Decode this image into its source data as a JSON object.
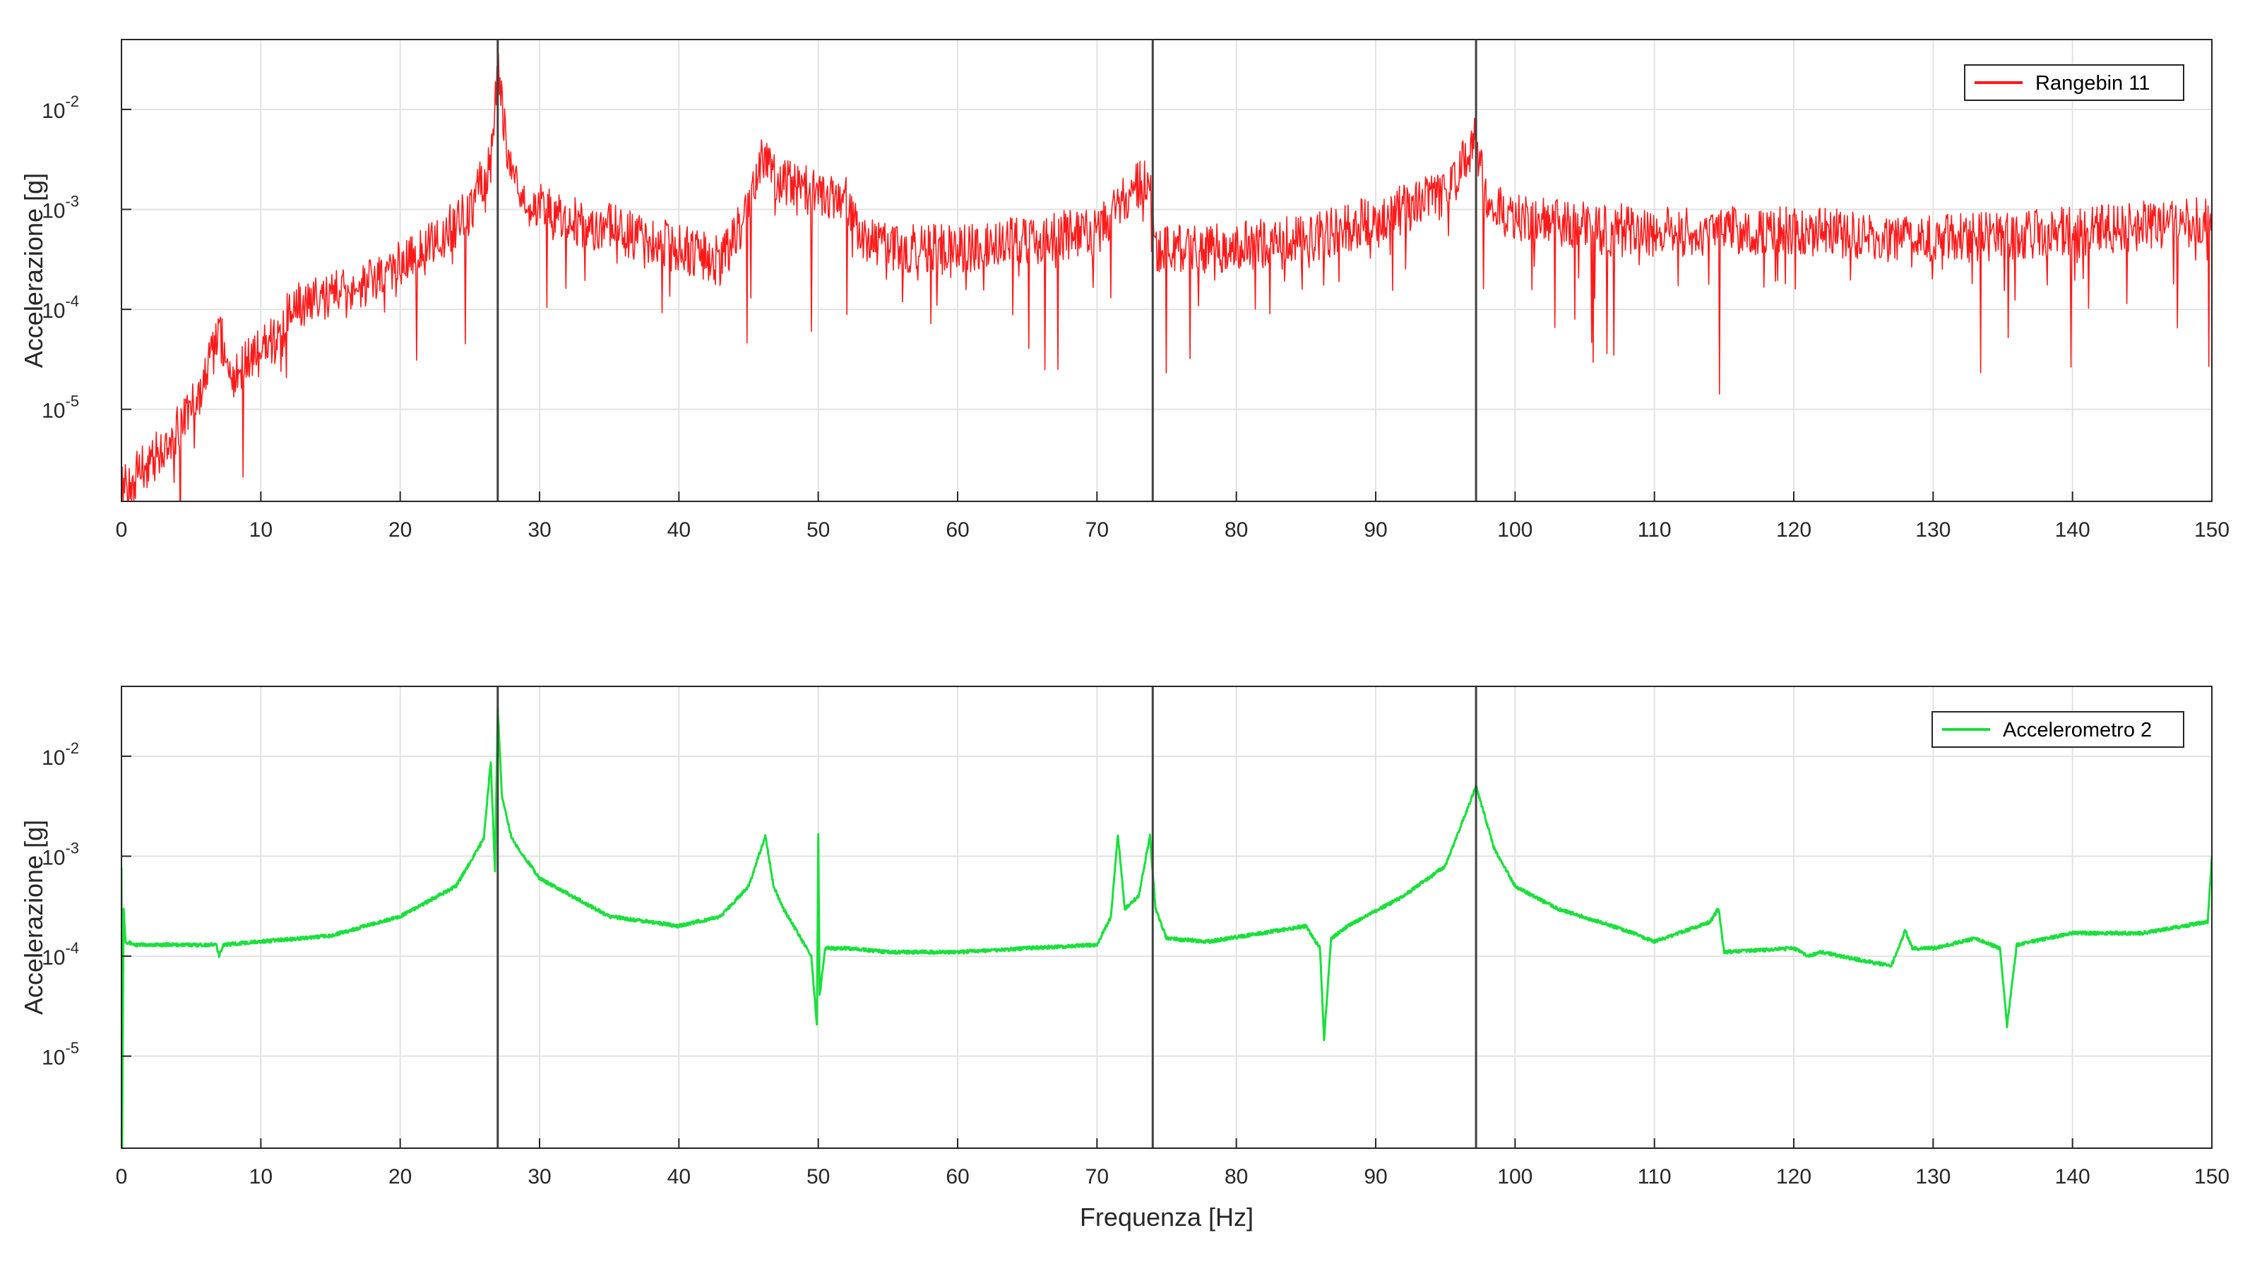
{
  "chart_data": [
    {
      "type": "line",
      "ylabel": "Accelerazione [g]",
      "xlabel": "",
      "xlim": [
        0,
        150
      ],
      "ylim": [
        1.2e-06,
        0.05
      ],
      "yscale": "log",
      "grid": true,
      "legend": {
        "placement": "top-right"
      },
      "xticks": [
        0,
        10,
        20,
        30,
        40,
        50,
        60,
        70,
        80,
        90,
        100,
        110,
        120,
        130,
        140,
        150
      ],
      "xtick_labels": [
        "0",
        "10",
        "20",
        "30",
        "40",
        "50",
        "60",
        "70",
        "80",
        "90",
        "100",
        "110",
        "120",
        "130",
        "140",
        "150"
      ],
      "yticks": [
        1e-05,
        0.0001,
        0.001,
        0.01
      ],
      "ytick_labels": [
        {
          "base": "10",
          "exp": "-5"
        },
        {
          "base": "10",
          "exp": "-4"
        },
        {
          "base": "10",
          "exp": "-3"
        },
        {
          "base": "10",
          "exp": "-2"
        }
      ],
      "vlines": [
        27,
        74,
        97.2
      ],
      "vline_color": "#404040",
      "series": [
        {
          "name": "Rangebin 11",
          "color": "#ff1a1a",
          "noise": "high",
          "x": [
            0,
            2,
            4,
            6,
            7,
            8,
            10,
            11.5,
            12,
            14,
            18,
            22,
            25,
            26.5,
            27,
            27.6,
            29,
            32,
            36,
            40,
            43,
            45,
            46.2,
            47,
            50,
            52,
            53,
            55,
            60,
            65,
            70,
            73.8,
            74.2,
            78,
            85,
            90,
            95,
            97.2,
            98,
            100,
            110,
            120,
            130,
            140,
            150
          ],
          "y": [
            1.5e-06,
            3e-06,
            6e-06,
            2e-05,
            6e-05,
            2e-05,
            4e-05,
            6e-05,
            0.0001,
            0.00012,
            0.0002,
            0.0004,
            0.001,
            0.003,
            0.03,
            0.004,
            0.0012,
            0.0008,
            0.0006,
            0.0004,
            0.0003,
            0.001,
            0.004,
            0.002,
            0.0015,
            0.0013,
            0.0005,
            0.0004,
            0.0004,
            0.0005,
            0.0006,
            0.0025,
            0.0004,
            0.0004,
            0.0005,
            0.0008,
            0.0014,
            0.005,
            0.0012,
            0.0008,
            0.0006,
            0.0006,
            0.0005,
            0.0006,
            0.0008
          ]
        }
      ]
    },
    {
      "type": "line",
      "ylabel": "Accelerazione [g]",
      "xlabel": "Frequenza [Hz]",
      "xlim": [
        0,
        150
      ],
      "ylim": [
        1.2e-06,
        0.05
      ],
      "yscale": "log",
      "grid": true,
      "legend": {
        "placement": "top-right"
      },
      "xticks": [
        0,
        10,
        20,
        30,
        40,
        50,
        60,
        70,
        80,
        90,
        100,
        110,
        120,
        130,
        140,
        150
      ],
      "xtick_labels": [
        "0",
        "10",
        "20",
        "30",
        "40",
        "50",
        "60",
        "70",
        "80",
        "90",
        "100",
        "110",
        "120",
        "130",
        "140",
        "150"
      ],
      "yticks": [
        1e-05,
        0.0001,
        0.001,
        0.01
      ],
      "ytick_labels": [
        {
          "base": "10",
          "exp": "-5"
        },
        {
          "base": "10",
          "exp": "-4"
        },
        {
          "base": "10",
          "exp": "-3"
        },
        {
          "base": "10",
          "exp": "-2"
        }
      ],
      "vlines": [
        27,
        74,
        97.2
      ],
      "vline_color": "#404040",
      "series": [
        {
          "name": "Accelerometro 2",
          "color": "#19e03b",
          "noise": "low",
          "x": [
            0,
            0.05,
            0.15,
            0.3,
            1,
            5,
            6.8,
            7,
            7.3,
            10,
            15,
            20,
            24,
            26,
            26.5,
            26.8,
            27,
            27.3,
            28,
            30,
            35,
            40,
            43,
            45,
            46.2,
            46.8,
            47.5,
            49.5,
            49.9,
            50,
            50.1,
            50.5,
            52,
            55,
            60,
            65,
            70,
            71,
            71.5,
            72,
            73,
            73.8,
            74.2,
            75,
            78,
            85,
            86,
            86.3,
            86.8,
            88,
            92,
            95,
            97.2,
            98.5,
            100,
            103,
            108,
            110,
            114,
            114.6,
            115,
            120,
            121,
            122,
            125,
            127,
            128,
            128.5,
            130,
            133,
            134.8,
            135.3,
            136,
            140,
            145,
            149.7,
            150
          ],
          "y": [
            0.0008,
            1.2e-06,
            0.0003,
            0.00014,
            0.00013,
            0.00013,
            0.00013,
            0.0001,
            0.00013,
            0.00014,
            0.00016,
            0.00025,
            0.0005,
            0.0015,
            0.009,
            0.0007,
            0.03,
            0.004,
            0.0015,
            0.0006,
            0.00025,
            0.0002,
            0.00025,
            0.0005,
            0.0016,
            0.0005,
            0.0003,
            0.0001,
            2e-05,
            0.0016,
            4e-05,
            0.00012,
            0.00012,
            0.00011,
            0.00011,
            0.00012,
            0.00013,
            0.00025,
            0.0016,
            0.0003,
            0.0004,
            0.0016,
            0.0003,
            0.00015,
            0.00014,
            0.0002,
            0.00012,
            1.5e-05,
            0.00015,
            0.0002,
            0.0004,
            0.0008,
            0.005,
            0.0012,
            0.0005,
            0.0003,
            0.00018,
            0.00014,
            0.00022,
            0.0003,
            0.00011,
            0.00012,
            0.0001,
            0.00011,
            9e-05,
            8e-05,
            0.00018,
            0.00012,
            0.00012,
            0.00015,
            0.00012,
            2e-05,
            0.00013,
            0.00017,
            0.00017,
            0.00022,
            0.001
          ]
        }
      ]
    }
  ]
}
